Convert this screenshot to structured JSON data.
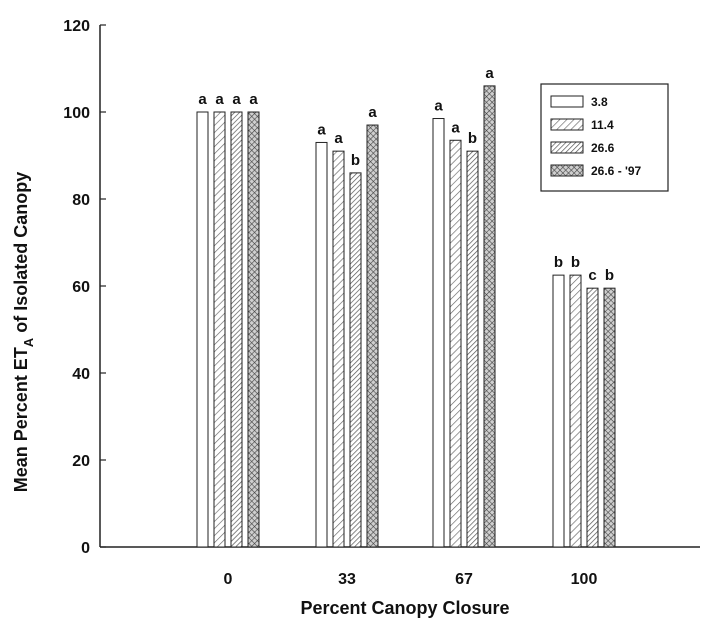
{
  "chart_data": {
    "type": "bar",
    "xlabel": "Percent Canopy Closure",
    "ylabel": "Mean Percent ET",
    "ylabel_subscript": "A",
    "ylabel_suffix": " of Isolated Canopy",
    "categories": [
      "0",
      "33",
      "67",
      "100"
    ],
    "ylim": [
      0,
      120
    ],
    "yticks": [
      "0",
      "20",
      "40",
      "60",
      "80",
      "100",
      "120"
    ],
    "grid": false,
    "legend_position": "top-right",
    "series": [
      {
        "name": "3.8",
        "pattern": "plain",
        "values": [
          100,
          93,
          98.5,
          62.5
        ],
        "labels": [
          "a",
          "a",
          "a",
          "b"
        ]
      },
      {
        "name": "11.4",
        "pattern": "diagonal",
        "values": [
          100,
          91,
          93.5,
          62.5
        ],
        "labels": [
          "a",
          "a",
          "a",
          "b"
        ]
      },
      {
        "name": "26.6",
        "pattern": "dense-diagonal",
        "values": [
          100,
          86,
          91,
          59.5
        ],
        "labels": [
          "a",
          "b",
          "b",
          "c"
        ]
      },
      {
        "name": "26.6 - '97",
        "pattern": "crosshatch",
        "values": [
          100,
          97,
          106,
          59.5
        ],
        "labels": [
          "a",
          "a",
          "a",
          "b"
        ]
      }
    ],
    "colors": {
      "stroke": "#222222",
      "fill": "#ffffff",
      "hatch": "#555555"
    }
  }
}
